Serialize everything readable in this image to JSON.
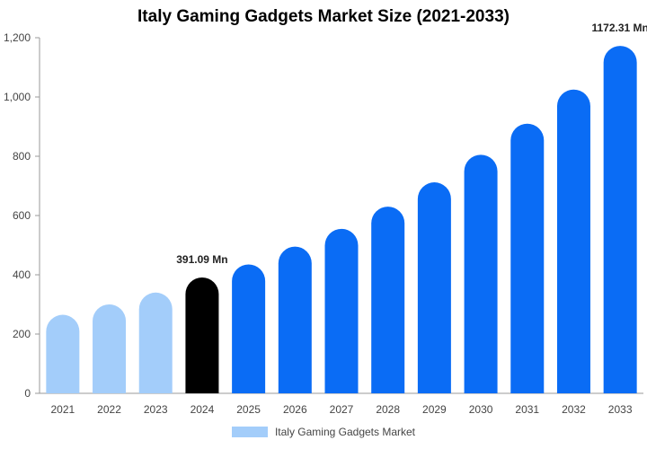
{
  "chart_data": {
    "type": "bar",
    "title": "Italy Gaming Gadgets Market Size (2021-2033)",
    "xlabel": "",
    "ylabel": "",
    "categories": [
      "2021",
      "2022",
      "2023",
      "2024",
      "2025",
      "2026",
      "2027",
      "2028",
      "2029",
      "2030",
      "2031",
      "2032",
      "2033"
    ],
    "series": [
      {
        "name": "Italy Gaming Gadgets Market",
        "values": [
          265,
          300,
          340,
          391.09,
          435,
          495,
          555,
          630,
          712,
          805,
          910,
          1025,
          1172.31
        ]
      }
    ],
    "ylim": [
      0,
      1200
    ],
    "yticks": [
      0,
      200,
      400,
      600,
      800,
      1000,
      1200
    ],
    "ytick_labels": [
      "0",
      "200",
      "400",
      "600",
      "800",
      "1,000",
      "1,200"
    ],
    "data_labels": [
      {
        "category": "2024",
        "text": "391.09 Mn"
      },
      {
        "category": "2033",
        "text": "1172.31 Mn"
      }
    ],
    "colors": {
      "historical": "#a3cdfa",
      "current": "#000000",
      "forecast": "#0a6cf5",
      "legend": "#a3cdfa"
    },
    "highlight_category": "2024",
    "grid": false,
    "legend_position": "bottom"
  }
}
